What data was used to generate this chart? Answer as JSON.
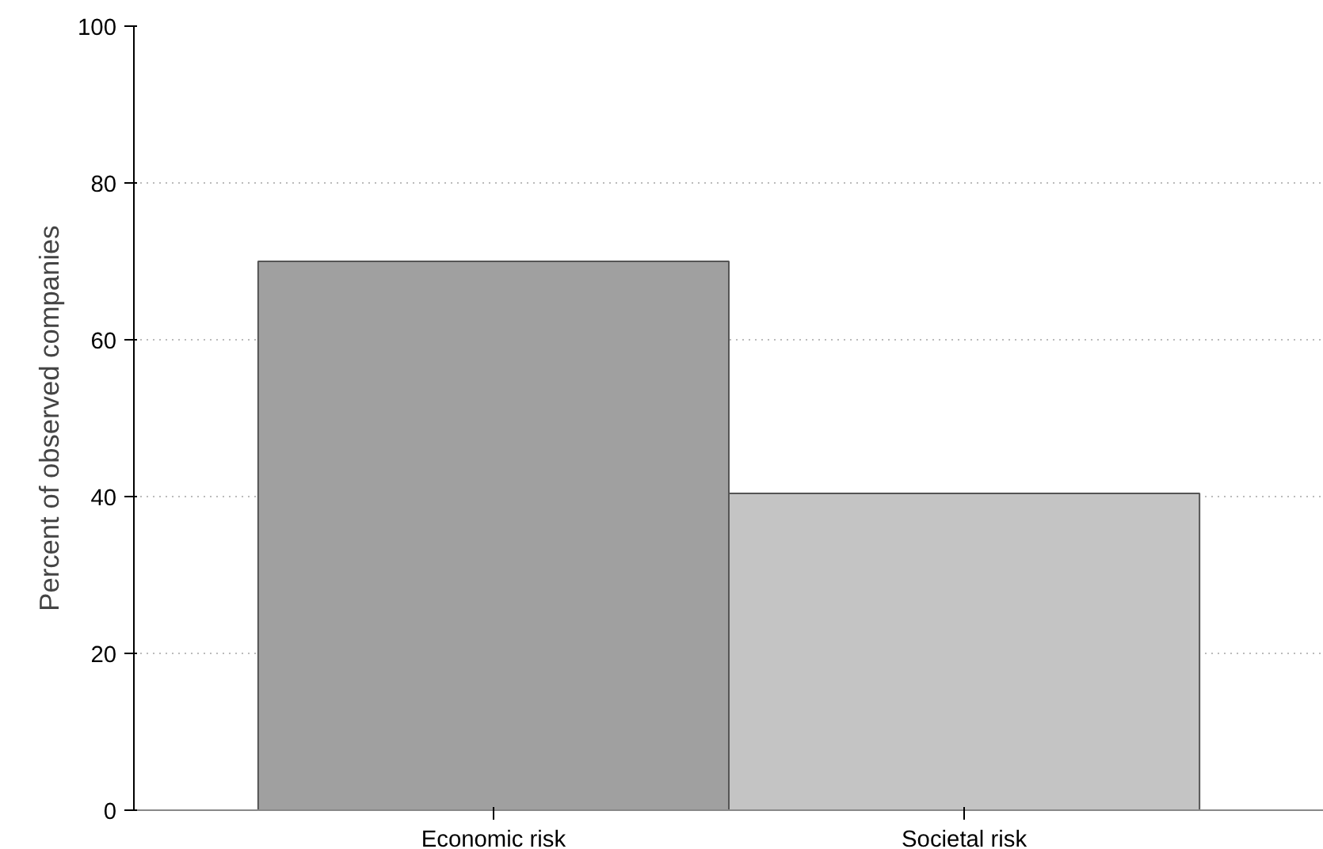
{
  "chart_data": {
    "type": "bar",
    "ylabel": "Percent of observed companies",
    "categories": [
      "Economic risk",
      "Societal risk"
    ],
    "values": [
      70,
      40.4
    ],
    "colors": [
      "#a0a0a0",
      "#c4c4c4"
    ],
    "ylim": [
      0,
      100
    ],
    "yticks": [
      0,
      20,
      40,
      60,
      80,
      100
    ],
    "grid": "y"
  }
}
